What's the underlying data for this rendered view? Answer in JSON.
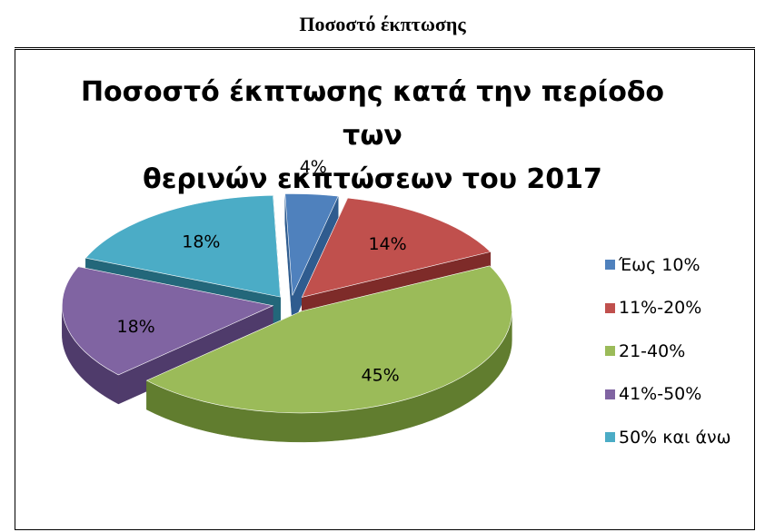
{
  "heading": "Ποσοστό έκπτωσης",
  "chart_data": {
    "type": "pie",
    "title": "Ποσοστό έκπτωσης κατά την περίοδο των θερινών εκπτώσεων του 2017",
    "title_lines": [
      "Ποσοστό έκπτωσης κατά την περίοδο των",
      "θερινών εκπτώσεων του 2017"
    ],
    "three_d": true,
    "exploded": true,
    "legend_position": "right",
    "categories": [
      "Έως 10%",
      "11%-20%",
      "21-40%",
      "41%-50%",
      "50% και άνω"
    ],
    "values": [
      4,
      14,
      45,
      18,
      18
    ],
    "data_labels": [
      "4%",
      "14%",
      "45%",
      "18%",
      "18%"
    ],
    "colors": [
      "#4f81bd",
      "#c0504d",
      "#9bbb59",
      "#8064a2",
      "#4bacc6"
    ],
    "side_colors": [
      "#2f5c8f",
      "#7e2b29",
      "#617d2f",
      "#4f3b6b",
      "#23677a"
    ]
  }
}
